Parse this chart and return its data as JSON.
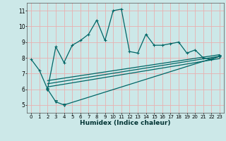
{
  "xlabel": "Humidex (Indice chaleur)",
  "background_color": "#cce8e8",
  "grid_color": "#e8b0b0",
  "line_color": "#006666",
  "xlim": [
    -0.5,
    23.5
  ],
  "ylim": [
    4.5,
    11.5
  ],
  "xticks": [
    0,
    1,
    2,
    3,
    4,
    5,
    6,
    7,
    8,
    9,
    10,
    11,
    12,
    13,
    14,
    15,
    16,
    17,
    18,
    19,
    20,
    21,
    22,
    23
  ],
  "yticks": [
    5,
    6,
    7,
    8,
    9,
    10,
    11
  ],
  "series1_x": [
    0,
    1,
    2,
    3,
    4,
    5,
    6,
    7,
    8,
    9,
    10,
    11,
    12,
    13,
    14,
    15,
    16,
    17,
    18,
    19,
    20,
    21,
    22,
    23
  ],
  "series1_y": [
    7.9,
    7.2,
    6.0,
    8.7,
    7.7,
    8.8,
    9.1,
    9.5,
    10.4,
    9.1,
    11.0,
    11.1,
    8.4,
    8.3,
    9.5,
    8.8,
    8.8,
    8.9,
    9.0,
    8.3,
    8.5,
    8.0,
    7.9,
    8.1
  ],
  "series2_x": [
    2,
    3,
    4,
    23
  ],
  "series2_y": [
    6.0,
    5.2,
    5.0,
    8.1
  ],
  "series3_x": [
    2,
    23
  ],
  "series3_y": [
    6.15,
    7.95
  ],
  "series4_x": [
    2,
    23
  ],
  "series4_y": [
    6.35,
    8.1
  ],
  "series5_x": [
    2,
    23
  ],
  "series5_y": [
    6.55,
    8.2
  ]
}
